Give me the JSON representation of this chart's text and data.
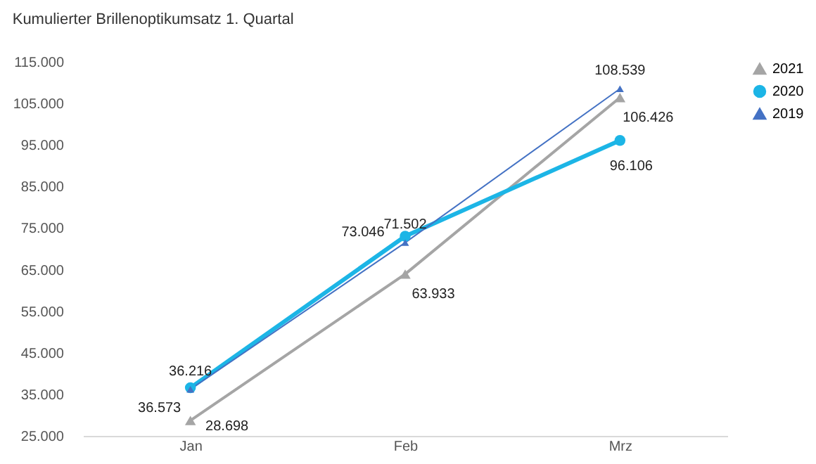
{
  "chart_data": {
    "type": "line",
    "title": "Kumulierter Brillenoptikumsatz 1. Quartal",
    "categories": [
      "Jan",
      "Feb",
      "Mrz"
    ],
    "series": [
      {
        "name": "2021",
        "color": "#a5a5a5",
        "marker": "triangle",
        "values": [
          28698,
          63933,
          106426
        ],
        "value_labels": [
          "28.698",
          "63.933",
          "106.426"
        ]
      },
      {
        "name": "2020",
        "color": "#1cb5e6",
        "marker": "circle",
        "values": [
          36573,
          73046,
          96106
        ],
        "value_labels": [
          "36.573",
          "73.046",
          "96.106"
        ]
      },
      {
        "name": "2019",
        "color": "#4472c4",
        "marker": "triangle",
        "values": [
          36216,
          71502,
          108539
        ],
        "value_labels": [
          "36.216",
          "71.502",
          "108.539"
        ]
      }
    ],
    "ylim": [
      25000,
      115000
    ],
    "yticks": [
      {
        "value": 25000,
        "label": "25.000"
      },
      {
        "value": 35000,
        "label": "35.000"
      },
      {
        "value": 45000,
        "label": "45.000"
      },
      {
        "value": 55000,
        "label": "55.000"
      },
      {
        "value": 65000,
        "label": "65.000"
      },
      {
        "value": 75000,
        "label": "75.000"
      },
      {
        "value": 85000,
        "label": "85.000"
      },
      {
        "value": 95000,
        "label": "95.000"
      },
      {
        "value": 105000,
        "label": "105.000"
      },
      {
        "value": 115000,
        "label": "115.000"
      }
    ],
    "grid": false,
    "legend": "right",
    "line_style": "solid"
  }
}
